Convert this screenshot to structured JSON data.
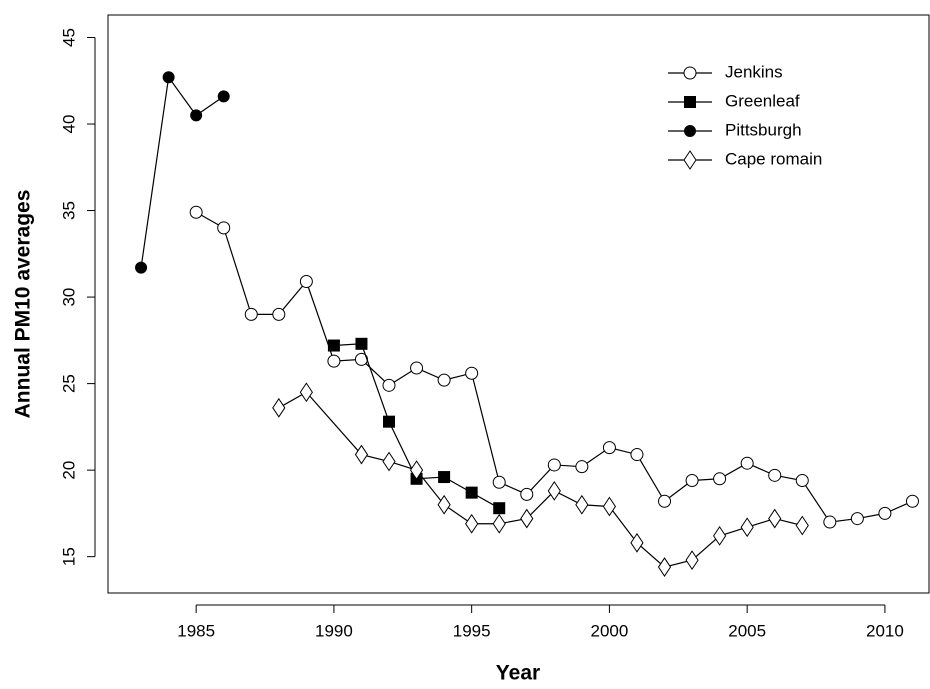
{
  "chart_data": {
    "type": "line",
    "x_label": "Year",
    "y_label": "Annual PM10 averages",
    "xlim": [
      1981.8,
      2011.6
    ],
    "ylim": [
      12.9,
      46.3
    ],
    "xticks": [
      1985,
      1990,
      1995,
      2000,
      2005,
      2010
    ],
    "yticks": [
      15,
      20,
      25,
      30,
      35,
      40,
      45
    ],
    "grid": false,
    "legend_position": "upper right",
    "series": [
      {
        "name": "Jenkins",
        "marker": "open-circle",
        "color": "#000000",
        "x": [
          1985,
          1986,
          1987,
          1988,
          1989,
          1990,
          1991,
          1992,
          1993,
          1994,
          1995,
          1996,
          1997,
          1998,
          1999,
          2000,
          2001,
          2002,
          2003,
          2004,
          2005,
          2006,
          2007,
          2008,
          2009,
          2010,
          2011
        ],
        "values": [
          34.9,
          34.0,
          29.0,
          29.0,
          30.9,
          26.3,
          26.4,
          24.9,
          25.9,
          25.2,
          25.6,
          19.3,
          18.6,
          20.3,
          20.2,
          21.3,
          20.9,
          18.2,
          19.4,
          19.5,
          20.4,
          19.7,
          19.4,
          17.0,
          17.2,
          17.5,
          18.2
        ]
      },
      {
        "name": "Greenleaf",
        "marker": "filled-square",
        "color": "#000000",
        "x": [
          1990,
          1991,
          1992,
          1993,
          1994,
          1995,
          1996
        ],
        "values": [
          27.2,
          27.3,
          22.8,
          19.5,
          19.6,
          18.7,
          17.8
        ]
      },
      {
        "name": "Pittsburgh",
        "marker": "filled-circle",
        "color": "#000000",
        "x": [
          1983,
          1984,
          1985,
          1986
        ],
        "values": [
          31.7,
          42.7,
          40.5,
          41.6
        ]
      },
      {
        "name": "Cape romain",
        "marker": "open-diamond",
        "color": "#000000",
        "x": [
          1988,
          1989,
          1991,
          1992,
          1993,
          1994,
          1995,
          1996,
          1997,
          1998,
          1999,
          2000,
          2001,
          2002,
          2003,
          2004,
          2005,
          2006,
          2007
        ],
        "values": [
          23.6,
          24.5,
          20.9,
          20.5,
          20.0,
          18.0,
          16.9,
          16.9,
          17.2,
          18.8,
          18.0,
          17.9,
          15.8,
          14.4,
          14.8,
          16.2,
          16.7,
          17.2,
          16.8
        ]
      }
    ]
  }
}
